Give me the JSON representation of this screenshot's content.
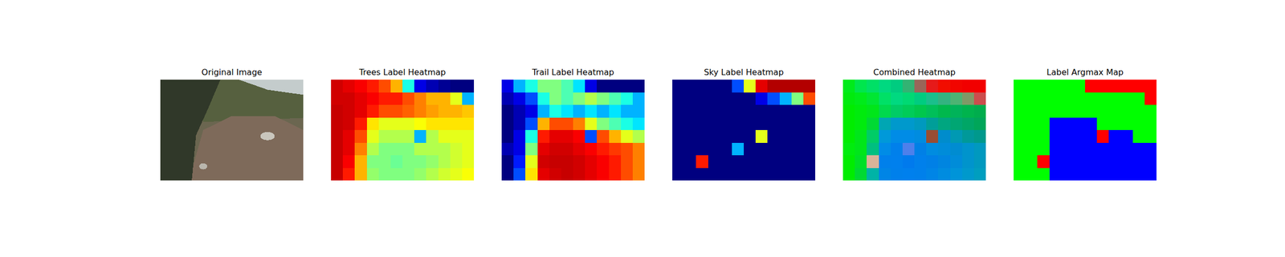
{
  "chart_data": [
    {
      "type": "image",
      "title": "Original Image",
      "tick_labels": false
    },
    {
      "type": "heatmap",
      "title": "Trees Label Heatmap",
      "tick_labels": false,
      "color_range": [
        0,
        1
      ],
      "cells": [
        [
          0.92,
          0.9,
          0.88,
          0.85,
          0.8,
          0.7,
          0.4,
          0.1,
          0.05,
          0.02,
          0.0,
          0.0
        ],
        [
          0.92,
          0.92,
          0.9,
          0.88,
          0.85,
          0.85,
          0.8,
          0.75,
          0.7,
          0.7,
          0.6,
          0.3
        ],
        [
          0.93,
          0.92,
          0.9,
          0.85,
          0.8,
          0.8,
          0.78,
          0.75,
          0.72,
          0.7,
          0.7,
          0.68
        ],
        [
          0.93,
          0.92,
          0.85,
          0.65,
          0.6,
          0.6,
          0.6,
          0.62,
          0.65,
          0.65,
          0.65,
          0.65
        ],
        [
          0.93,
          0.9,
          0.8,
          0.6,
          0.55,
          0.55,
          0.55,
          0.3,
          0.55,
          0.6,
          0.6,
          0.6
        ],
        [
          0.93,
          0.9,
          0.75,
          0.55,
          0.5,
          0.5,
          0.5,
          0.55,
          0.55,
          0.55,
          0.58,
          0.6
        ],
        [
          0.93,
          0.88,
          0.7,
          0.5,
          0.5,
          0.48,
          0.5,
          0.5,
          0.52,
          0.55,
          0.58,
          0.6
        ],
        [
          0.93,
          0.85,
          0.7,
          0.52,
          0.5,
          0.5,
          0.5,
          0.52,
          0.55,
          0.58,
          0.6,
          0.62
        ]
      ]
    },
    {
      "type": "heatmap",
      "title": "Trail Label Heatmap",
      "tick_labels": false,
      "color_range": [
        0,
        1
      ],
      "cells": [
        [
          0.1,
          0.3,
          0.4,
          0.5,
          0.5,
          0.45,
          0.35,
          0.1,
          0.0,
          0.0,
          0.0,
          0.0
        ],
        [
          0.05,
          0.1,
          0.2,
          0.4,
          0.5,
          0.45,
          0.5,
          0.55,
          0.5,
          0.45,
          0.4,
          0.3
        ],
        [
          0.0,
          0.05,
          0.1,
          0.3,
          0.4,
          0.35,
          0.3,
          0.35,
          0.3,
          0.35,
          0.3,
          0.3
        ],
        [
          0.0,
          0.05,
          0.2,
          0.7,
          0.8,
          0.8,
          0.75,
          0.6,
          0.5,
          0.45,
          0.4,
          0.35
        ],
        [
          0.0,
          0.1,
          0.4,
          0.85,
          0.9,
          0.9,
          0.88,
          0.2,
          0.8,
          0.7,
          0.6,
          0.55
        ],
        [
          0.05,
          0.1,
          0.5,
          0.9,
          0.92,
          0.92,
          0.9,
          0.88,
          0.85,
          0.82,
          0.8,
          0.75
        ],
        [
          0.0,
          0.15,
          0.6,
          0.92,
          0.93,
          0.93,
          0.92,
          0.9,
          0.88,
          0.85,
          0.8,
          0.75
        ],
        [
          0.0,
          0.2,
          0.65,
          0.9,
          0.92,
          0.93,
          0.92,
          0.9,
          0.88,
          0.85,
          0.8,
          0.75
        ]
      ]
    },
    {
      "type": "heatmap",
      "title": "Sky Label Heatmap",
      "tick_labels": false,
      "color_range": [
        0,
        1
      ],
      "cells": [
        [
          0,
          0,
          0,
          0,
          0,
          0.2,
          0.6,
          0.9,
          0.95,
          0.95,
          0.95,
          0.95
        ],
        [
          0,
          0,
          0,
          0,
          0,
          0,
          0,
          0.1,
          0.2,
          0.3,
          0.5,
          0.8
        ],
        [
          0,
          0,
          0,
          0,
          0,
          0,
          0,
          0,
          0,
          0,
          0,
          0
        ],
        [
          0,
          0,
          0,
          0,
          0,
          0,
          0,
          0,
          0,
          0,
          0,
          0
        ],
        [
          0,
          0,
          0,
          0,
          0,
          0,
          0,
          0.6,
          0,
          0,
          0,
          0
        ],
        [
          0,
          0,
          0,
          0,
          0,
          0.3,
          0,
          0,
          0,
          0,
          0,
          0
        ],
        [
          0,
          0,
          0.85,
          0,
          0,
          0,
          0,
          0,
          0,
          0,
          0,
          0
        ],
        [
          0,
          0,
          0,
          0,
          0,
          0,
          0,
          0,
          0,
          0,
          0,
          0
        ]
      ]
    },
    {
      "type": "rgb_composite",
      "title": "Combined Heatmap",
      "tick_labels": false,
      "colors": [
        "#00ff00",
        "#0000ff",
        "#ff0000"
      ]
    },
    {
      "type": "argmax",
      "title": "Label Argmax Map",
      "tick_labels": false,
      "colors": [
        "#00ff00",
        "#0000ff",
        "#ff0000"
      ]
    }
  ]
}
